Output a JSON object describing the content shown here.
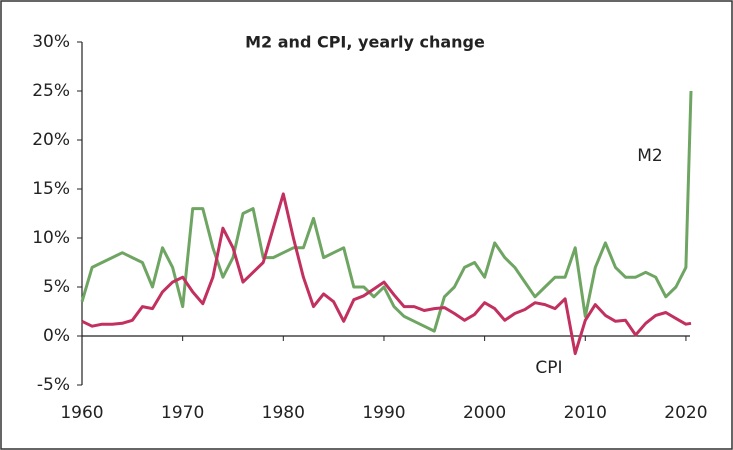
{
  "chart_data": {
    "type": "line",
    "title": "M2 and CPI, yearly change",
    "x": [
      1960,
      1961,
      1962,
      1963,
      1964,
      1965,
      1966,
      1967,
      1968,
      1969,
      1970,
      1971,
      1972,
      1973,
      1974,
      1975,
      1976,
      1977,
      1978,
      1979,
      1980,
      1981,
      1982,
      1983,
      1984,
      1985,
      1986,
      1987,
      1988,
      1989,
      1990,
      1991,
      1992,
      1993,
      1994,
      1995,
      1996,
      1997,
      1998,
      1999,
      2000,
      2001,
      2002,
      2003,
      2004,
      2005,
      2006,
      2007,
      2008,
      2009,
      2010,
      2011,
      2012,
      2013,
      2014,
      2015,
      2016,
      2017,
      2018,
      2019,
      2020,
      2020.5
    ],
    "series": [
      {
        "name": "M2",
        "color": "#6fa562",
        "values": [
          3.5,
          7,
          7.5,
          8,
          8.5,
          8,
          7.5,
          5,
          9,
          7,
          3,
          13,
          13,
          9,
          6,
          8,
          12.5,
          13,
          8,
          8,
          8.5,
          9,
          9,
          12,
          8,
          8.5,
          9,
          5,
          5,
          4,
          5,
          3,
          2,
          1.5,
          1,
          0.5,
          4,
          5,
          7,
          7.5,
          6,
          9.5,
          8,
          7,
          5.5,
          4,
          5,
          6,
          6,
          9,
          2,
          7,
          9.5,
          7,
          6,
          6,
          6.5,
          6,
          4,
          5,
          7,
          25
        ]
      },
      {
        "name": "CPI",
        "color": "#c1305f",
        "values": [
          1.5,
          1,
          1.2,
          1.2,
          1.3,
          1.6,
          3,
          2.8,
          4.5,
          5.5,
          6,
          4.5,
          3.3,
          6,
          11,
          9,
          5.5,
          6.5,
          7.5,
          11,
          14.5,
          10,
          6,
          3,
          4.3,
          3.5,
          1.5,
          3.7,
          4.1,
          4.8,
          5.5,
          4.2,
          3,
          3,
          2.6,
          2.8,
          2.9,
          2.3,
          1.6,
          2.2,
          3.4,
          2.8,
          1.6,
          2.3,
          2.7,
          3.4,
          3.2,
          2.8,
          3.8,
          -1.8,
          1.6,
          3.2,
          2.1,
          1.5,
          1.6,
          0.1,
          1.3,
          2.1,
          2.4,
          1.8,
          1.2,
          1.3
        ]
      }
    ],
    "xlim": [
      1960,
      2021
    ],
    "xticks": [
      1960,
      1970,
      1980,
      1990,
      2000,
      2010,
      2020
    ],
    "ylim": [
      -5,
      30
    ],
    "yticks": [
      {
        "value": -5,
        "label": "-5%"
      },
      {
        "value": 0,
        "label": "0%"
      },
      {
        "value": 5,
        "label": "5%"
      },
      {
        "value": 10,
        "label": "10%"
      },
      {
        "value": 15,
        "label": "15%"
      },
      {
        "value": 20,
        "label": "20%"
      },
      {
        "value": 25,
        "label": "25%"
      },
      {
        "value": 30,
        "label": "30%"
      }
    ],
    "grid": false
  }
}
